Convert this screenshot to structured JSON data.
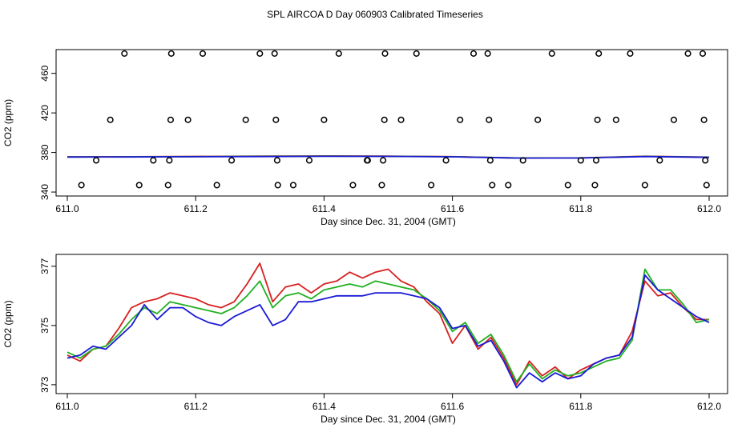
{
  "title": "SPL AIRCOA D  Day 060903  Calibrated Timeseries",
  "chart_data": [
    {
      "type": "scatter",
      "xlabel": "Day since Dec. 31, 2004 (GMT)",
      "ylabel": "CO2 (ppm)",
      "xlim": [
        611.0,
        612.0
      ],
      "ylim": [
        336,
        484
      ],
      "xticks": [
        611.0,
        611.2,
        611.4,
        611.6,
        611.8,
        612.0
      ],
      "xtick_labels": [
        "611.0",
        "611.2",
        "611.4",
        "611.6",
        "611.8",
        "612.0"
      ],
      "yticks": [
        340,
        380,
        420,
        460
      ],
      "ytick_labels": [
        "340",
        "380",
        "420",
        "460"
      ],
      "points": {
        "x": [
          611.022,
          611.045,
          611.067,
          611.089,
          611.112,
          611.134,
          611.157,
          611.159,
          611.161,
          611.162,
          611.188,
          611.211,
          611.233,
          611.256,
          611.278,
          611.3,
          611.323,
          611.325,
          611.327,
          611.328,
          611.352,
          611.377,
          611.4,
          611.423,
          611.445,
          611.467,
          611.468,
          611.49,
          611.492,
          611.494,
          611.495,
          611.52,
          611.544,
          611.567,
          611.59,
          611.612,
          611.633,
          611.655,
          611.657,
          611.659,
          611.662,
          611.687,
          611.71,
          611.733,
          611.755,
          611.78,
          611.8,
          611.822,
          611.824,
          611.826,
          611.828,
          611.855,
          611.877,
          611.9,
          611.923,
          611.945,
          611.967,
          611.99,
          611.992,
          611.994,
          611.996
        ],
        "y": [
          347,
          372,
          413,
          480,
          347,
          372,
          347,
          372,
          413,
          480,
          413,
          480,
          347,
          372,
          413,
          480,
          480,
          413,
          372,
          347,
          347,
          372,
          413,
          480,
          347,
          372,
          372,
          347,
          372,
          413,
          480,
          413,
          480,
          347,
          372,
          413,
          480,
          480,
          413,
          372,
          347,
          347,
          372,
          413,
          480,
          347,
          372,
          347,
          372,
          413,
          480,
          413,
          480,
          347,
          372,
          413,
          480,
          480,
          413,
          372,
          347
        ]
      },
      "series": [
        {
          "name": "red",
          "color": "#d62020",
          "x": [
            611.0,
            611.1,
            611.2,
            611.3,
            611.4,
            611.5,
            611.6,
            611.7,
            611.8,
            611.9,
            612.0
          ],
          "values": [
            375.6,
            375.7,
            376.0,
            376.3,
            376.5,
            376.3,
            375.8,
            374.5,
            374.6,
            376.2,
            375.3
          ]
        },
        {
          "name": "green",
          "color": "#20b020",
          "x": [
            611.0,
            611.1,
            611.2,
            611.3,
            611.4,
            611.5,
            611.6,
            611.7,
            611.8,
            611.9,
            612.0
          ],
          "values": [
            375.5,
            375.6,
            375.8,
            376.1,
            376.3,
            376.1,
            375.7,
            374.4,
            374.5,
            376.0,
            375.2
          ]
        },
        {
          "name": "blue",
          "color": "#1a1ad6",
          "x": [
            611.0,
            611.1,
            611.2,
            611.3,
            611.4,
            611.5,
            611.6,
            611.7,
            611.8,
            611.9,
            612.0
          ],
          "values": [
            375.4,
            375.5,
            375.7,
            375.9,
            376.1,
            376.0,
            375.6,
            374.3,
            374.4,
            375.9,
            375.1
          ]
        }
      ]
    },
    {
      "type": "line",
      "xlabel": "Day since Dec. 31, 2004 (GMT)",
      "ylabel": "CO2 (ppm)",
      "xlim": [
        611.0,
        612.0
      ],
      "ylim": [
        372.7,
        377.4
      ],
      "xticks": [
        611.0,
        611.2,
        611.4,
        611.6,
        611.8,
        612.0
      ],
      "xtick_labels": [
        "611.0",
        "611.2",
        "611.4",
        "611.6",
        "611.8",
        "612.0"
      ],
      "yticks": [
        373,
        375,
        377
      ],
      "ytick_labels": [
        "373",
        "375",
        "377"
      ],
      "x": [
        611.0,
        611.02,
        611.04,
        611.06,
        611.08,
        611.1,
        611.12,
        611.14,
        611.16,
        611.18,
        611.2,
        611.22,
        611.24,
        611.26,
        611.28,
        611.3,
        611.32,
        611.34,
        611.36,
        611.38,
        611.4,
        611.42,
        611.44,
        611.46,
        611.48,
        611.5,
        611.52,
        611.54,
        611.56,
        611.58,
        611.6,
        611.62,
        611.64,
        611.66,
        611.68,
        611.7,
        611.72,
        611.74,
        611.76,
        611.78,
        611.8,
        611.82,
        611.84,
        611.86,
        611.88,
        611.9,
        611.92,
        611.94,
        611.96,
        611.98,
        612.0
      ],
      "series": [
        {
          "name": "red",
          "color": "#d62020",
          "values": [
            374.0,
            373.8,
            374.2,
            374.3,
            374.9,
            375.6,
            375.8,
            375.9,
            376.1,
            376.0,
            375.9,
            375.7,
            375.6,
            375.8,
            376.4,
            377.1,
            375.8,
            376.3,
            376.4,
            376.1,
            376.4,
            376.5,
            376.8,
            376.6,
            376.8,
            376.9,
            376.5,
            376.3,
            375.8,
            375.4,
            374.4,
            375.0,
            374.2,
            374.6,
            373.9,
            373.0,
            373.8,
            373.3,
            373.6,
            373.2,
            373.5,
            373.7,
            373.9,
            374.0,
            374.8,
            376.5,
            376.0,
            376.1,
            375.6,
            375.2,
            375.2
          ]
        },
        {
          "name": "green",
          "color": "#20b020",
          "values": [
            374.1,
            373.9,
            374.2,
            374.3,
            374.7,
            375.2,
            375.6,
            375.4,
            375.8,
            375.7,
            375.6,
            375.5,
            375.4,
            375.6,
            376.0,
            376.5,
            375.6,
            376.0,
            376.1,
            375.9,
            376.2,
            376.3,
            376.4,
            376.3,
            376.5,
            376.4,
            376.3,
            376.2,
            375.9,
            375.5,
            374.8,
            375.1,
            374.4,
            374.7,
            374.0,
            373.1,
            373.7,
            373.2,
            373.5,
            373.3,
            373.4,
            373.6,
            373.8,
            373.9,
            374.5,
            376.9,
            376.2,
            376.2,
            375.7,
            375.1,
            375.2
          ]
        },
        {
          "name": "blue",
          "color": "#1a1ad6",
          "values": [
            373.9,
            374.0,
            374.3,
            374.2,
            374.6,
            375.0,
            375.7,
            375.2,
            375.6,
            375.6,
            375.3,
            375.1,
            375.0,
            375.3,
            375.5,
            375.7,
            375.0,
            375.2,
            375.8,
            375.8,
            375.9,
            376.0,
            376.0,
            376.0,
            376.1,
            376.1,
            376.1,
            376.0,
            375.9,
            375.6,
            374.9,
            375.0,
            374.3,
            374.5,
            373.8,
            372.9,
            373.4,
            373.1,
            373.4,
            373.2,
            373.3,
            373.7,
            373.9,
            374.0,
            374.6,
            376.7,
            376.2,
            375.9,
            375.6,
            375.3,
            375.1
          ]
        }
      ]
    }
  ]
}
